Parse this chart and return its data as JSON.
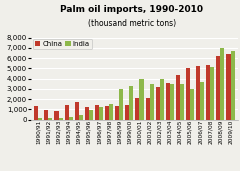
{
  "title": "Palm oil imports, 1990-2010",
  "subtitle": "(thousand metric tons)",
  "categories": [
    "1990/91",
    "1991/92",
    "1992/93",
    "1993/94",
    "1994/95",
    "1995/96",
    "1996/97",
    "1997/98",
    "1998/99",
    "1999/00",
    "2000/01",
    "2001/02",
    "2002/03",
    "2003/04",
    "2004/05",
    "2005/06",
    "2006/07",
    "2007/08",
    "2008/09",
    "2009/10"
  ],
  "china": [
    1300,
    900,
    800,
    1450,
    1750,
    1200,
    1400,
    1300,
    1350,
    1400,
    2100,
    2100,
    3200,
    3600,
    4350,
    5050,
    5250,
    5300,
    6250,
    6450
  ],
  "india": [
    200,
    150,
    200,
    250,
    500,
    950,
    1200,
    1500,
    2950,
    3300,
    4000,
    3450,
    3950,
    3450,
    3500,
    2950,
    3650,
    5100,
    6950,
    6650
  ],
  "china_color": "#c0392b",
  "india_color": "#8db84a",
  "bg_color": "#f0efea",
  "grid_color": "#ffffff",
  "ylim": [
    0,
    8000
  ],
  "yticks": [
    0,
    1000,
    2000,
    3000,
    4000,
    5000,
    6000,
    7000,
    8000
  ],
  "ylabel_fontsize": 5.0,
  "xlabel_fontsize": 4.2,
  "title_fontsize": 6.5,
  "subtitle_fontsize": 5.5,
  "legend_fontsize": 5.0,
  "bar_width": 0.4
}
